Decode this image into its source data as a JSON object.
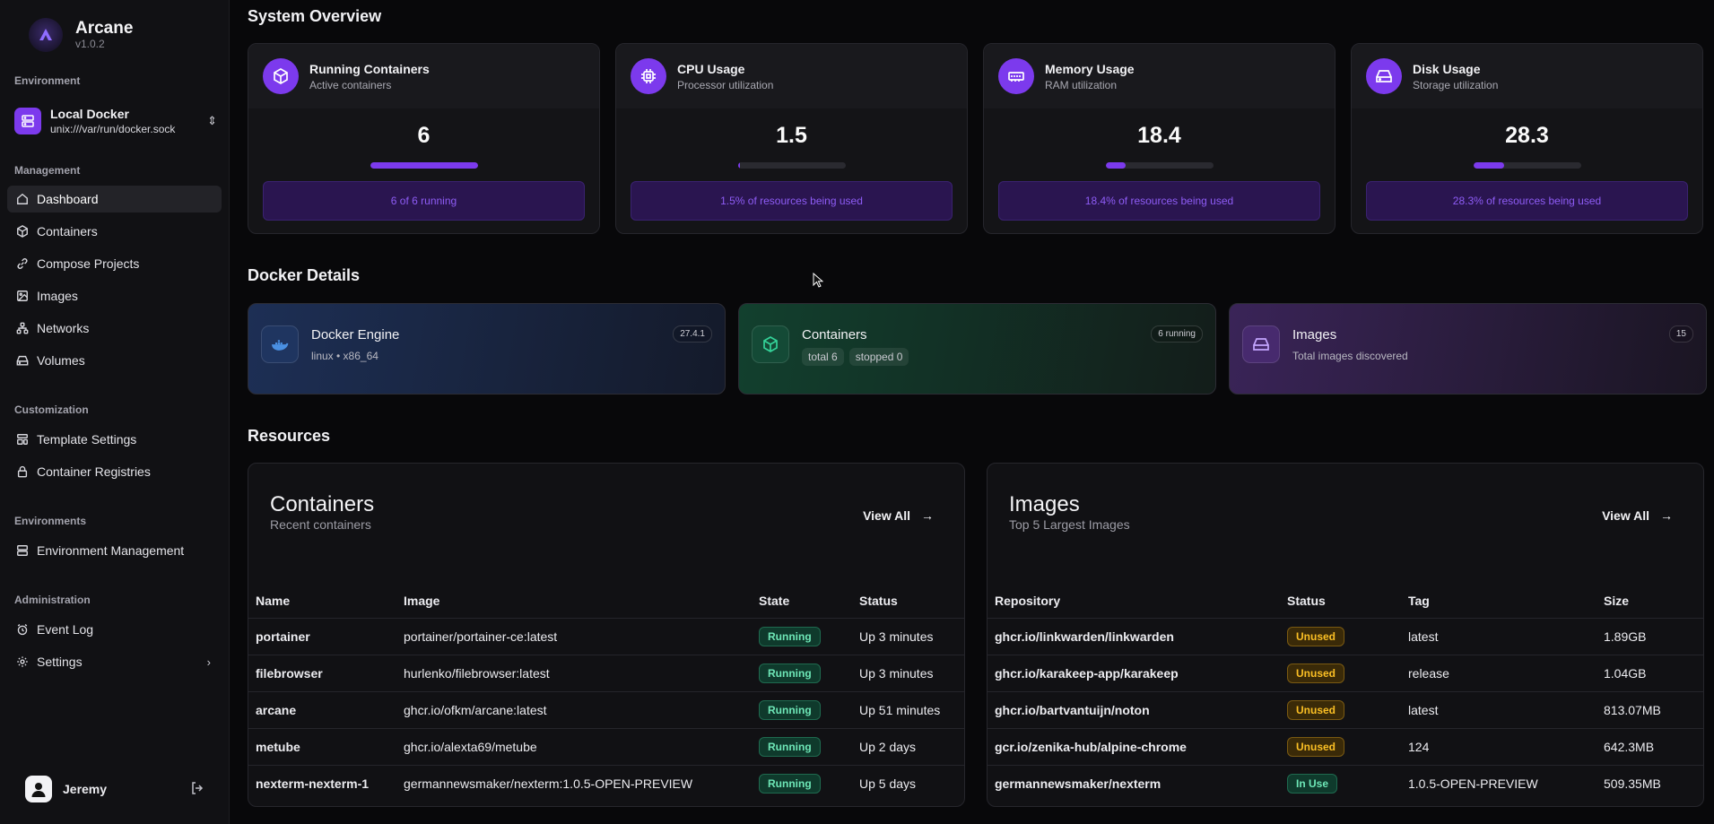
{
  "app": {
    "name": "Arcane",
    "version": "v1.0.2"
  },
  "sidebar": {
    "environment_label": "Environment",
    "environment": {
      "name": "Local Docker",
      "socket": "unix:///var/run/docker.sock"
    },
    "sections": [
      {
        "label": "Management",
        "items": [
          "Dashboard",
          "Containers",
          "Compose Projects",
          "Images",
          "Networks",
          "Volumes"
        ]
      },
      {
        "label": "Customization",
        "items": [
          "Template Settings",
          "Container Registries"
        ]
      },
      {
        "label": "Environments",
        "items": [
          "Environment Management"
        ]
      },
      {
        "label": "Administration",
        "items": [
          "Event Log",
          "Settings"
        ]
      }
    ],
    "user": {
      "name": "Jeremy"
    }
  },
  "system_overview": {
    "title": "System Overview",
    "cards": [
      {
        "title": "Running Containers",
        "subtitle": "Active containers",
        "value": "6",
        "percent": 100,
        "footer": "6 of 6 running"
      },
      {
        "title": "CPU Usage",
        "subtitle": "Processor utilization",
        "value": "1.5",
        "percent": 1.5,
        "footer": "1.5% of resources being used"
      },
      {
        "title": "Memory Usage",
        "subtitle": "RAM utilization",
        "value": "18.4",
        "percent": 18.4,
        "footer": "18.4% of resources being used"
      },
      {
        "title": "Disk Usage",
        "subtitle": "Storage utilization",
        "value": "28.3",
        "percent": 28.3,
        "footer": "28.3% of resources being used"
      }
    ]
  },
  "docker_details": {
    "title": "Docker Details",
    "engine": {
      "title": "Docker Engine",
      "subtitle": "linux • x86_64",
      "badge": "27.4.1"
    },
    "containers": {
      "title": "Containers",
      "pills": [
        "total 6",
        "stopped 0"
      ],
      "badge": "6 running"
    },
    "images": {
      "title": "Images",
      "subtitle": "Total images discovered",
      "badge": "15"
    }
  },
  "resources": {
    "title": "Resources",
    "containers": {
      "title": "Containers",
      "subtitle": "Recent containers",
      "view_all": "View All",
      "columns": [
        "Name",
        "Image",
        "State",
        "Status"
      ],
      "rows": [
        {
          "name": "portainer",
          "image": "portainer/portainer-ce:latest",
          "state": "Running",
          "status": "Up 3 minutes"
        },
        {
          "name": "filebrowser",
          "image": "hurlenko/filebrowser:latest",
          "state": "Running",
          "status": "Up 3 minutes"
        },
        {
          "name": "arcane",
          "image": "ghcr.io/ofkm/arcane:latest",
          "state": "Running",
          "status": "Up 51 minutes"
        },
        {
          "name": "metube",
          "image": "ghcr.io/alexta69/metube",
          "state": "Running",
          "status": "Up 2 days"
        },
        {
          "name": "nexterm-nexterm-1",
          "image": "germannewsmaker/nexterm:1.0.5-OPEN-PREVIEW",
          "state": "Running",
          "status": "Up 5 days"
        }
      ]
    },
    "images": {
      "title": "Images",
      "subtitle": "Top 5 Largest Images",
      "view_all": "View All",
      "columns": [
        "Repository",
        "Status",
        "Tag",
        "Size"
      ],
      "rows": [
        {
          "repo": "ghcr.io/linkwarden/linkwarden",
          "status": "Unused",
          "tag": "latest",
          "size": "1.89GB"
        },
        {
          "repo": "ghcr.io/karakeep-app/karakeep",
          "status": "Unused",
          "tag": "release",
          "size": "1.04GB"
        },
        {
          "repo": "ghcr.io/bartvantuijn/noton",
          "status": "Unused",
          "tag": "latest",
          "size": "813.07MB"
        },
        {
          "repo": "gcr.io/zenika-hub/alpine-chrome",
          "status": "Unused",
          "tag": "124",
          "size": "642.3MB"
        },
        {
          "repo": "germannewsmaker/nexterm",
          "status": "In Use",
          "tag": "1.0.5-OPEN-PREVIEW",
          "size": "509.35MB"
        }
      ]
    }
  },
  "colors": {
    "accent": "#7c3aed",
    "running": "#6ee7b7",
    "unused": "#fbbf24"
  }
}
